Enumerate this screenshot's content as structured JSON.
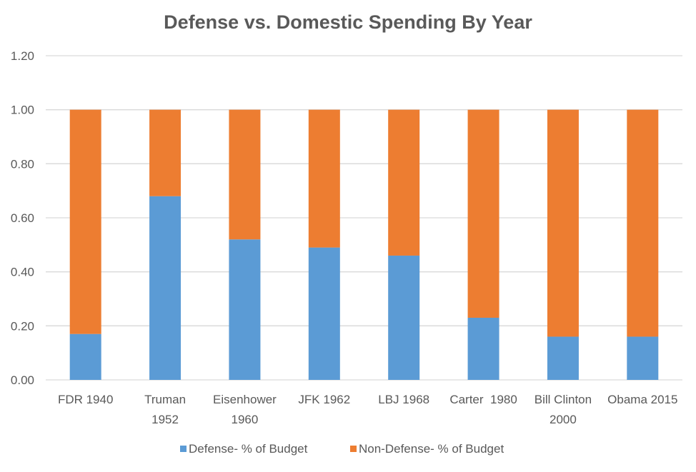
{
  "chart_data": {
    "type": "bar",
    "stacked": true,
    "title": "Defense vs. Domestic Spending By Year",
    "xlabel": "",
    "ylabel": "",
    "ylim": [
      0,
      1.2
    ],
    "yticks": [
      0,
      0.2,
      0.4,
      0.6,
      0.8,
      1.0,
      1.2
    ],
    "ytick_labels": [
      "0.00",
      "0.20",
      "0.40",
      "0.60",
      "0.80",
      "1.00",
      "1.20"
    ],
    "grid": true,
    "legend_position": "bottom",
    "categories": [
      [
        "FDR 1940"
      ],
      [
        "Truman",
        "1952"
      ],
      [
        "Eisenhower",
        "1960"
      ],
      [
        "JFK 1962"
      ],
      [
        "LBJ 1968"
      ],
      [
        "Carter  1980"
      ],
      [
        "Bill Clinton",
        "2000"
      ],
      [
        "Obama 2015"
      ]
    ],
    "series": [
      {
        "name": "Defense- % of Budget",
        "color": "#5B9BD5",
        "values": [
          0.17,
          0.68,
          0.52,
          0.49,
          0.46,
          0.23,
          0.16,
          0.16
        ]
      },
      {
        "name": "Non-Defense- % of Budget",
        "color": "#ED7D31",
        "values": [
          0.83,
          0.32,
          0.48,
          0.51,
          0.54,
          0.77,
          0.84,
          0.84
        ]
      }
    ]
  }
}
